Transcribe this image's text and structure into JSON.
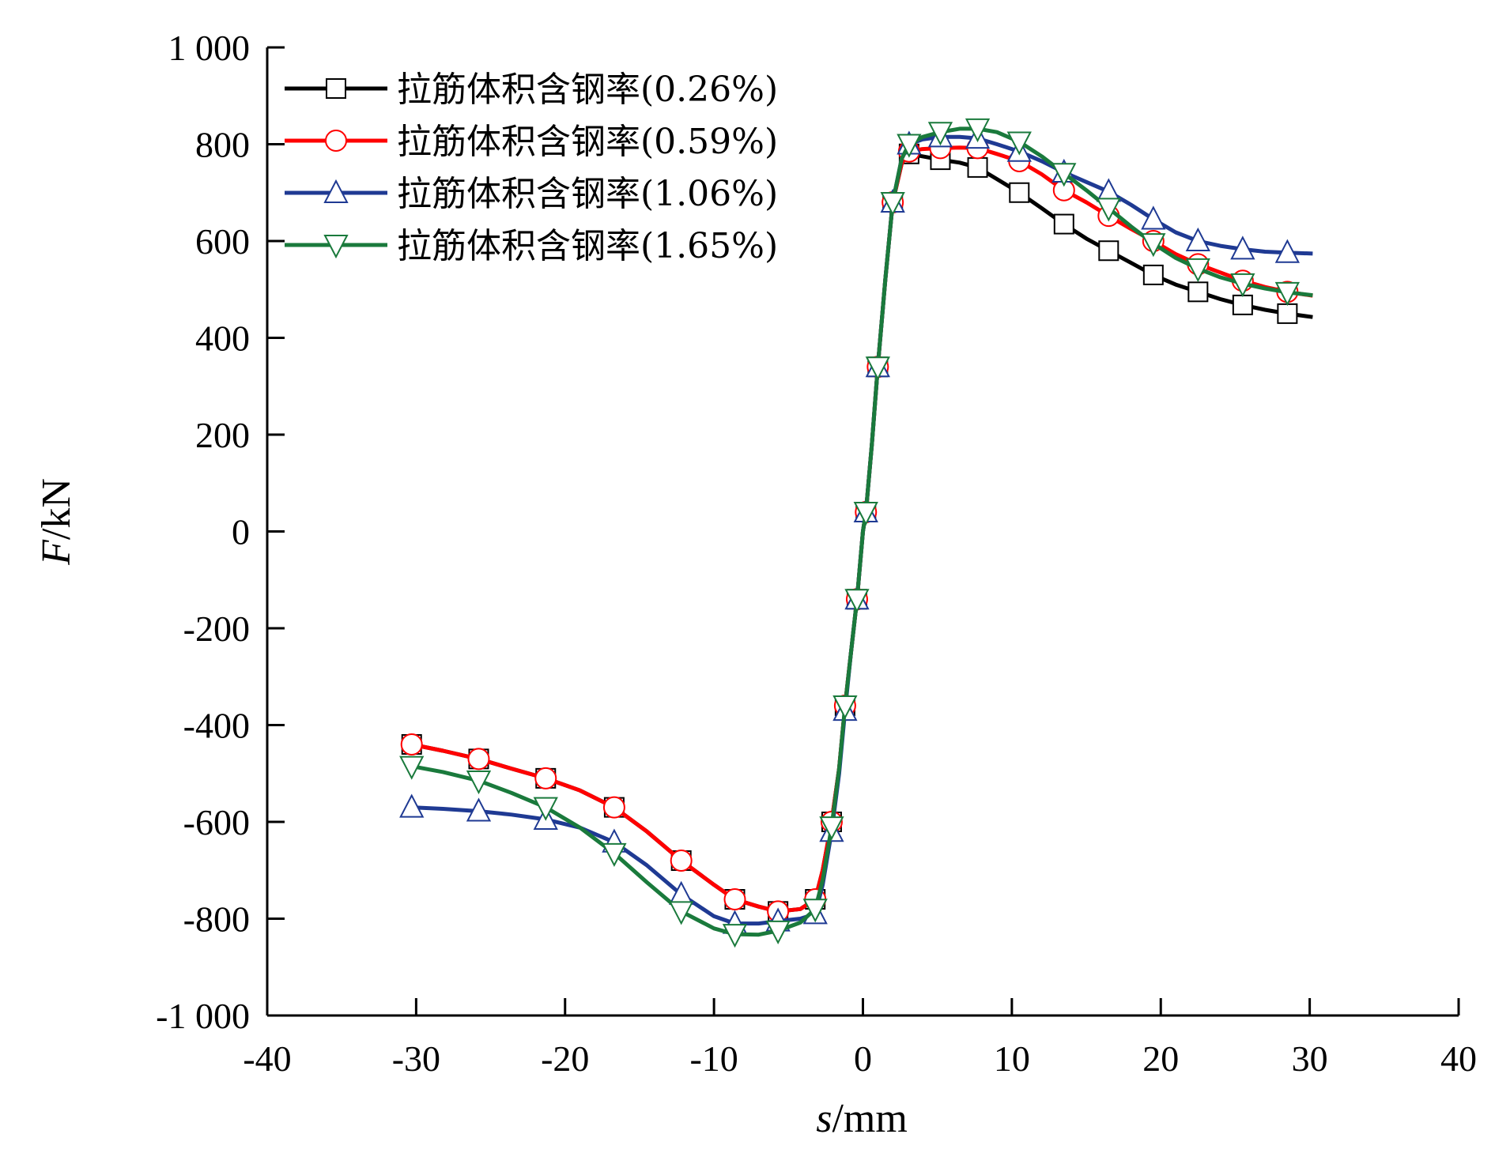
{
  "chart_data": {
    "type": "line",
    "title": "",
    "xlabel": {
      "var": "s",
      "unit": "/mm"
    },
    "ylabel": {
      "var": "F",
      "unit": "/kN"
    },
    "xlim": [
      -40,
      40
    ],
    "ylim": [
      -1000,
      1000
    ],
    "x_ticks": [
      -40,
      -30,
      -20,
      -10,
      0,
      10,
      20,
      30,
      40
    ],
    "x_tick_labels": [
      "-40",
      "-30",
      "-20",
      "-10",
      "0",
      "10",
      "20",
      "30",
      "40"
    ],
    "y_ticks": [
      -1000,
      -800,
      -600,
      -400,
      -200,
      0,
      200,
      400,
      600,
      800,
      1000
    ],
    "y_tick_labels": [
      "-1 000",
      "-800",
      "-600",
      "-400",
      "-200",
      "0",
      "200",
      "400",
      "600",
      "800",
      "1 000"
    ],
    "grid": false,
    "legend_position": "top-left",
    "series": [
      {
        "name": "拉筋体积含钢率(0.26%)",
        "color": "#000000",
        "marker": "square",
        "x": [
          -30.3,
          -28.2,
          -25.8,
          -23.6,
          -21.3,
          -19.0,
          -16.7,
          -14.5,
          -12.2,
          -10.0,
          -8.6,
          -7.0,
          -5.7,
          -4.2,
          -3.2,
          -2.7,
          -2.1,
          -1.6,
          -1.2,
          -0.8,
          -0.4,
          0.0,
          0.2,
          0.6,
          1.0,
          1.5,
          2.0,
          2.6,
          3.1,
          4.0,
          5.2,
          6.5,
          7.7,
          9.0,
          10.5,
          12.0,
          13.5,
          15.0,
          16.5,
          18.0,
          19.5,
          21.0,
          22.5,
          24.0,
          25.5,
          27.0,
          28.5,
          30.2
        ],
        "y": [
          -440,
          -453,
          -470,
          -490,
          -510,
          -535,
          -570,
          -620,
          -680,
          -730,
          -760,
          -775,
          -785,
          -780,
          -760,
          -700,
          -600,
          -490,
          -360,
          -250,
          -140,
          0,
          40,
          180,
          340,
          520,
          680,
          760,
          780,
          775,
          768,
          762,
          752,
          728,
          700,
          668,
          635,
          605,
          580,
          555,
          530,
          510,
          495,
          480,
          468,
          458,
          450,
          443
        ]
      },
      {
        "name": "拉筋体积含钢率(0.59%)",
        "color": "#ff0000",
        "marker": "circle",
        "x": [
          -30.3,
          -28.2,
          -25.8,
          -23.6,
          -21.3,
          -19.0,
          -16.7,
          -14.5,
          -12.2,
          -10.0,
          -8.6,
          -7.0,
          -5.7,
          -4.2,
          -3.2,
          -2.7,
          -2.1,
          -1.6,
          -1.2,
          -0.8,
          -0.4,
          0.0,
          0.2,
          0.6,
          1.0,
          1.5,
          2.0,
          2.6,
          3.1,
          4.0,
          5.2,
          6.5,
          7.7,
          9.0,
          10.5,
          12.0,
          13.5,
          15.0,
          16.5,
          18.0,
          19.5,
          21.0,
          22.5,
          24.0,
          25.5,
          27.0,
          28.5,
          30.2
        ],
        "y": [
          -440,
          -453,
          -470,
          -490,
          -510,
          -535,
          -570,
          -620,
          -680,
          -730,
          -760,
          -775,
          -785,
          -780,
          -760,
          -700,
          -600,
          -490,
          -360,
          -250,
          -140,
          0,
          40,
          180,
          340,
          520,
          680,
          760,
          785,
          790,
          792,
          793,
          792,
          780,
          765,
          738,
          705,
          680,
          652,
          625,
          600,
          573,
          552,
          535,
          518,
          505,
          495,
          487
        ]
      },
      {
        "name": "拉筋体积含钢率(1.06%)",
        "color": "#1f3a93",
        "marker": "triangle-up",
        "x": [
          -30.3,
          -28.2,
          -25.8,
          -23.6,
          -21.3,
          -19.0,
          -16.7,
          -14.5,
          -12.2,
          -10.0,
          -8.6,
          -7.0,
          -5.7,
          -4.2,
          -3.2,
          -2.7,
          -2.1,
          -1.6,
          -1.2,
          -0.8,
          -0.4,
          0.0,
          0.2,
          0.6,
          1.0,
          1.5,
          2.0,
          2.6,
          3.1,
          4.0,
          5.2,
          6.5,
          7.7,
          9.0,
          10.5,
          12.0,
          13.5,
          15.0,
          16.5,
          18.0,
          19.5,
          21.0,
          22.5,
          24.0,
          25.5,
          27.0,
          28.5,
          30.2
        ],
        "y": [
          -570,
          -573,
          -578,
          -585,
          -595,
          -612,
          -642,
          -690,
          -750,
          -795,
          -810,
          -810,
          -805,
          -800,
          -790,
          -730,
          -620,
          -500,
          -370,
          -250,
          -140,
          0,
          40,
          180,
          340,
          520,
          680,
          770,
          800,
          810,
          815,
          815,
          812,
          800,
          785,
          765,
          742,
          722,
          702,
          675,
          645,
          618,
          600,
          590,
          583,
          578,
          576,
          574
        ]
      },
      {
        "name": "拉筋体积含钢率(1.65%)",
        "color": "#1a7a3c",
        "marker": "triangle-down",
        "x": [
          -30.3,
          -28.2,
          -25.8,
          -23.6,
          -21.3,
          -19.0,
          -16.7,
          -14.5,
          -12.2,
          -10.0,
          -8.6,
          -7.0,
          -5.7,
          -4.2,
          -3.2,
          -2.7,
          -2.1,
          -1.6,
          -1.2,
          -0.8,
          -0.4,
          0.0,
          0.2,
          0.6,
          1.0,
          1.5,
          2.0,
          2.6,
          3.1,
          4.0,
          5.2,
          6.5,
          7.7,
          9.0,
          10.5,
          12.0,
          13.5,
          15.0,
          16.5,
          18.0,
          19.5,
          21.0,
          22.5,
          24.0,
          25.5,
          27.0,
          28.5,
          30.2
        ],
        "y": [
          -485,
          -497,
          -515,
          -540,
          -570,
          -612,
          -665,
          -725,
          -785,
          -820,
          -832,
          -833,
          -825,
          -808,
          -780,
          -720,
          -610,
          -490,
          -360,
          -250,
          -140,
          0,
          40,
          180,
          340,
          520,
          680,
          770,
          800,
          815,
          825,
          832,
          832,
          825,
          805,
          775,
          740,
          705,
          668,
          630,
          595,
          565,
          543,
          525,
          512,
          502,
          494,
          488
        ]
      }
    ]
  }
}
